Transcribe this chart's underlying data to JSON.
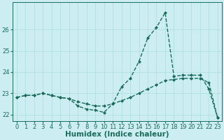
{
  "xlabel": "Humidex (Indice chaleur)",
  "bg_color": "#cceef2",
  "grid_color": "#aadddd",
  "line_color": "#1a6b5a",
  "ylim": [
    21.7,
    27.3
  ],
  "xlim": [
    -0.5,
    23.5
  ],
  "yticks": [
    22,
    23,
    24,
    25,
    26
  ],
  "xticks": [
    0,
    1,
    2,
    3,
    4,
    5,
    6,
    7,
    8,
    9,
    10,
    11,
    12,
    13,
    14,
    15,
    16,
    17,
    18,
    19,
    20,
    21,
    22,
    23
  ],
  "line1_x": [
    0,
    1,
    2,
    3,
    4,
    5,
    6,
    7,
    8,
    9,
    10,
    11,
    12,
    13,
    14,
    15,
    16,
    17,
    18,
    19,
    20,
    21,
    22,
    23
  ],
  "line1_y": [
    22.8,
    22.9,
    22.9,
    23.0,
    22.9,
    22.8,
    22.75,
    22.4,
    22.25,
    22.2,
    22.1,
    22.5,
    23.3,
    23.7,
    24.5,
    25.6,
    26.1,
    26.8,
    23.8,
    23.85,
    23.85,
    23.85,
    23.2,
    21.85
  ],
  "line2_x": [
    0,
    1,
    2,
    3,
    4,
    5,
    6,
    7,
    8,
    9,
    10,
    11,
    12,
    13,
    14,
    15,
    16,
    17,
    18,
    19,
    20,
    21,
    22,
    23
  ],
  "line2_y": [
    22.8,
    22.9,
    22.9,
    23.0,
    22.9,
    22.8,
    22.75,
    22.6,
    22.5,
    22.4,
    22.4,
    22.5,
    22.65,
    22.8,
    23.0,
    23.2,
    23.4,
    23.6,
    23.65,
    23.7,
    23.7,
    23.7,
    23.5,
    21.85
  ],
  "markersize": 2.5,
  "linewidth": 1.0,
  "fontsize_tick": 6,
  "fontsize_label": 7.5
}
